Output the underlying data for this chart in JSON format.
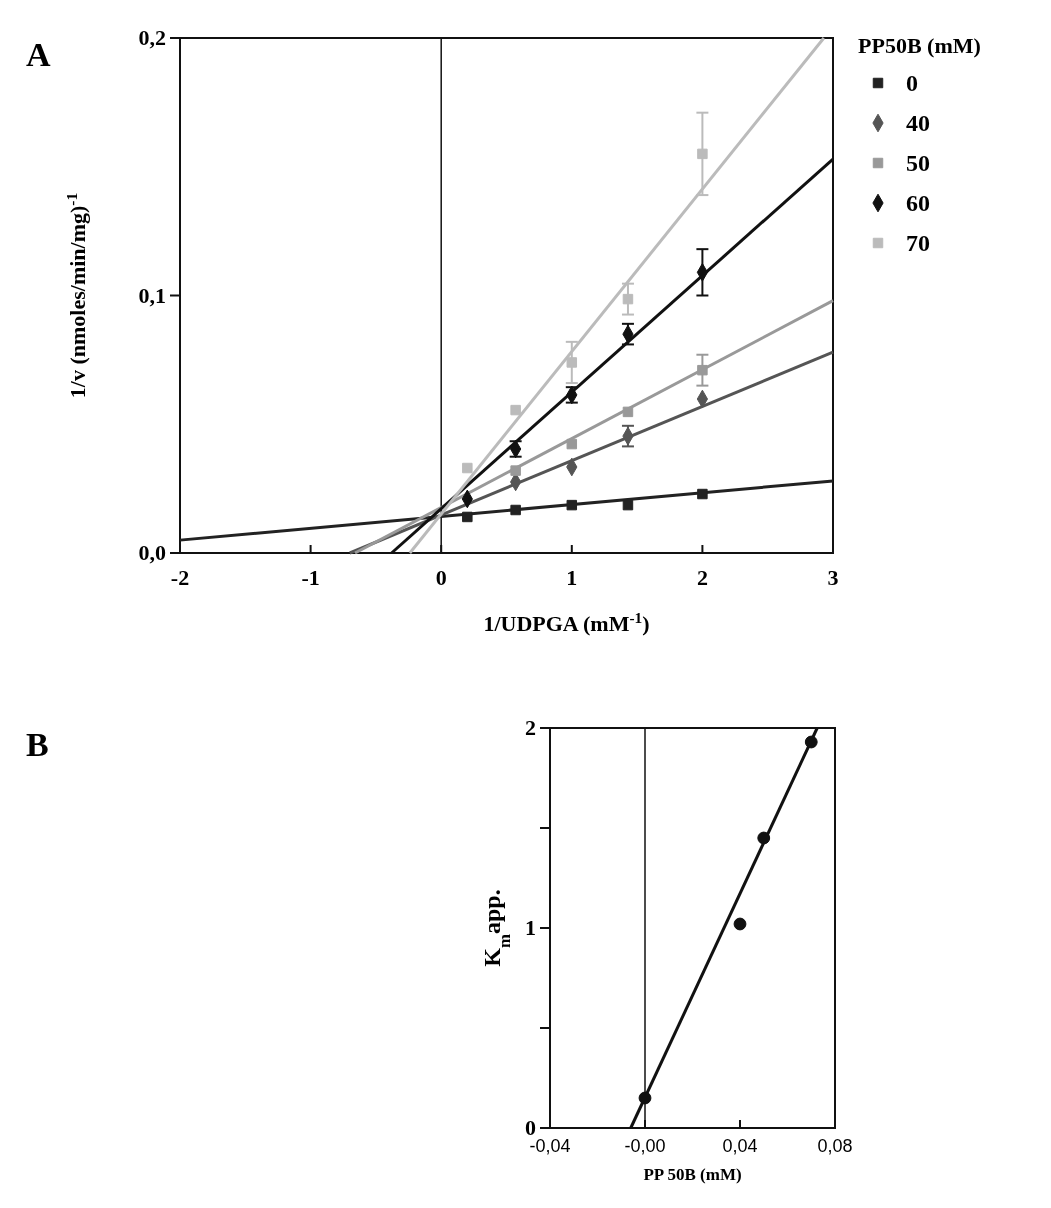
{
  "chart_data": [
    {
      "type": "scatter",
      "xlabel": "1/UDPGA (mM$^{-1}$)",
      "ylabel": "1/v (nmoles/min/mg)$^{-1}$",
      "legend_title": "PP50B (mM)",
      "legend": "right",
      "annotations": [
        "A"
      ],
      "xlim": [
        -2,
        3
      ],
      "ylim": [
        0,
        0.2
      ],
      "xticks": [
        -2,
        -1,
        0,
        1,
        2,
        3
      ],
      "yticks": [
        {
          "value": 0,
          "label": "0,0"
        },
        {
          "value": 0.1,
          "label": "0,1"
        },
        {
          "value": 0.2,
          "label": "0,2"
        }
      ],
      "grid": false,
      "ref_lines": [
        {
          "axis": "x",
          "value": 0
        }
      ],
      "series": [
        {
          "name": "0",
          "color": "#222222",
          "marker": "square",
          "x": [
            0.2,
            0.57,
            1,
            1.43,
            2
          ],
          "values": [
            0.014,
            0.0167,
            0.0186,
            0.0186,
            0.0229
          ]
        },
        {
          "name": "40",
          "color": "#555555",
          "marker": "diamond",
          "x": [
            0.57,
            1,
            1.43,
            2
          ],
          "values": [
            0.0276,
            0.0334,
            0.0454,
            0.0598
          ],
          "errors": [
            null,
            null,
            0.004,
            null
          ]
        },
        {
          "name": "50",
          "color": "#999999",
          "marker": "square",
          "x": [
            0.57,
            1,
            1.43,
            2
          ],
          "values": [
            0.032,
            0.0423,
            0.0548,
            0.071
          ],
          "errors": [
            null,
            null,
            null,
            0.006
          ]
        },
        {
          "name": "60",
          "color": "#111111",
          "marker": "diamond",
          "x": [
            0.2,
            0.57,
            1,
            1.43,
            2
          ],
          "values": [
            0.021,
            0.0404,
            0.0614,
            0.085,
            0.109
          ],
          "errors": [
            null,
            0.003,
            0.003,
            0.004,
            0.009
          ]
        },
        {
          "name": "70",
          "color": "#bbbbbb",
          "marker": "square",
          "x": [
            0.2,
            0.57,
            1,
            1.43,
            2
          ],
          "values": [
            0.033,
            0.0555,
            0.074,
            0.0986,
            0.155
          ],
          "errors": [
            null,
            null,
            0.008,
            0.006,
            0.016
          ]
        },
        {
          "type": "line",
          "color": "#222222",
          "x": [
            -2,
            3
          ],
          "values": [
            0.005,
            0.028
          ]
        },
        {
          "type": "line",
          "color": "#555555",
          "x": [
            -0.7,
            3
          ],
          "values": [
            0,
            0.078
          ]
        },
        {
          "type": "line",
          "color": "#999999",
          "x": [
            -0.66,
            3
          ],
          "values": [
            0,
            0.098
          ]
        },
        {
          "type": "line",
          "color": "#111111",
          "x": [
            -0.38,
            3
          ],
          "values": [
            0,
            0.153
          ]
        },
        {
          "type": "line",
          "color": "#bbbbbb",
          "x": [
            -0.24,
            2.93
          ],
          "values": [
            0,
            0.2
          ]
        }
      ]
    },
    {
      "type": "scatter",
      "xlabel": "PP 50B (mM)",
      "ylabel": "K$_{m}$app.",
      "annotations": [
        "B"
      ],
      "xlim": [
        -0.04,
        0.08
      ],
      "ylim": [
        0,
        2
      ],
      "xticks": [
        {
          "value": -0.04,
          "label": "-0,04"
        },
        {
          "value": 0,
          "label": "-0,00"
        },
        {
          "value": 0.04,
          "label": "0,04"
        },
        {
          "value": 0.08,
          "label": "0,08"
        }
      ],
      "yticks": [
        0,
        {
          "value": 0.5,
          "label": null
        },
        1,
        {
          "value": 1.5,
          "label": null
        },
        2
      ],
      "grid": false,
      "ref_lines": [
        {
          "axis": "x",
          "value": 0
        }
      ],
      "series": [
        {
          "color": "#111111",
          "marker": "circle",
          "x": [
            0,
            0.04,
            0.05,
            0.07
          ],
          "values": [
            0.15,
            1.02,
            1.45,
            1.93
          ]
        },
        {
          "type": "line",
          "color": "#111111",
          "x": [
            -0.006,
            0.0725
          ],
          "values": [
            0,
            2
          ]
        }
      ]
    }
  ]
}
